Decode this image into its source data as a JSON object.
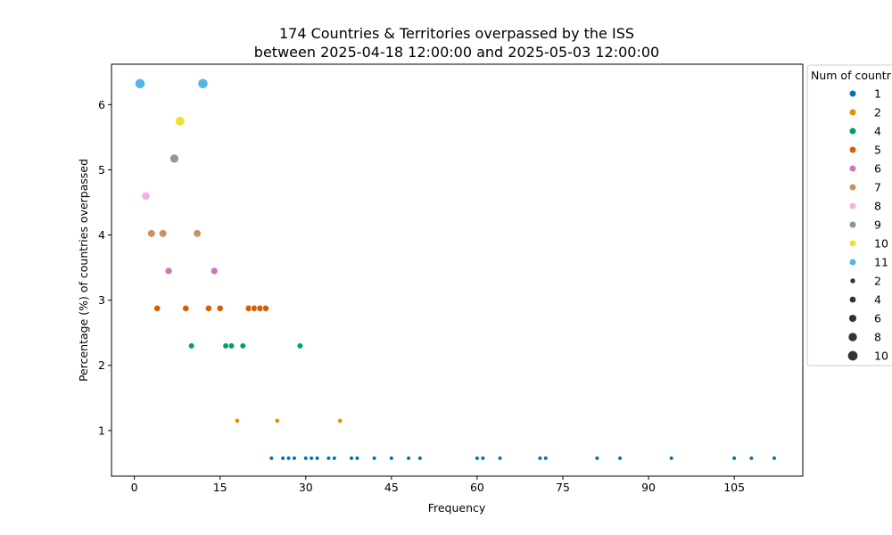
{
  "chart_data": {
    "type": "scatter",
    "title": "174 Countries & Territories overpassed by the ISS",
    "subtitle": "between 2025-04-18 12:00:00 and 2025-05-03 12:00:00",
    "xlabel": "Frequency",
    "ylabel": "Percentage (%) of countries overpassed",
    "xlim": [
      -4,
      117
    ],
    "ylim": [
      0.3,
      6.62
    ],
    "xticks": [
      0,
      15,
      30,
      45,
      60,
      75,
      90,
      105
    ],
    "yticks": [
      1,
      2,
      3,
      4,
      5,
      6
    ],
    "legend": {
      "title": "Num of countries",
      "placement": "outside-right",
      "hue_entries": [
        {
          "label": "1",
          "color": "#0173b2"
        },
        {
          "label": "2",
          "color": "#de8f05"
        },
        {
          "label": "4",
          "color": "#029e73"
        },
        {
          "label": "5",
          "color": "#d55e00"
        },
        {
          "label": "6",
          "color": "#cc78bc"
        },
        {
          "label": "7",
          "color": "#ca9161"
        },
        {
          "label": "8",
          "color": "#fbafe4"
        },
        {
          "label": "9",
          "color": "#949494"
        },
        {
          "label": "10",
          "color": "#ece133"
        },
        {
          "label": "11",
          "color": "#56b4e9"
        }
      ],
      "size_entries": [
        {
          "label": "2",
          "value": 2
        },
        {
          "label": "4",
          "value": 4
        },
        {
          "label": "6",
          "value": 6
        },
        {
          "label": "8",
          "value": 8
        },
        {
          "label": "10",
          "value": 10
        }
      ]
    },
    "series": [
      {
        "name": "1",
        "color": "#0173b2",
        "count": 1,
        "x": [
          24,
          26,
          27,
          28,
          30,
          31,
          32,
          34,
          35,
          38,
          39,
          42,
          45,
          48,
          50,
          60,
          61,
          64,
          71,
          72,
          81,
          85,
          94,
          105,
          108,
          112
        ],
        "y": [
          0.575,
          0.575,
          0.575,
          0.575,
          0.575,
          0.575,
          0.575,
          0.575,
          0.575,
          0.575,
          0.575,
          0.575,
          0.575,
          0.575,
          0.575,
          0.575,
          0.575,
          0.575,
          0.575,
          0.575,
          0.575,
          0.575,
          0.575,
          0.575,
          0.575,
          0.575
        ]
      },
      {
        "name": "2",
        "color": "#de8f05",
        "count": 2,
        "x": [
          18,
          25,
          36
        ],
        "y": [
          1.149,
          1.149,
          1.149
        ]
      },
      {
        "name": "4",
        "color": "#029e73",
        "count": 4,
        "x": [
          10,
          16,
          17,
          19,
          29
        ],
        "y": [
          2.299,
          2.299,
          2.299,
          2.299,
          2.299
        ]
      },
      {
        "name": "5",
        "color": "#d55e00",
        "count": 5,
        "x": [
          4,
          9,
          13,
          15,
          20,
          21,
          22,
          23
        ],
        "y": [
          2.874,
          2.874,
          2.874,
          2.874,
          2.874,
          2.874,
          2.874,
          2.874
        ]
      },
      {
        "name": "6",
        "color": "#cc78bc",
        "count": 6,
        "x": [
          6,
          14
        ],
        "y": [
          3.448,
          3.448
        ]
      },
      {
        "name": "7",
        "color": "#ca9161",
        "count": 7,
        "x": [
          3,
          5,
          11
        ],
        "y": [
          4.023,
          4.023,
          4.023
        ]
      },
      {
        "name": "8",
        "color": "#fbafe4",
        "count": 8,
        "x": [
          2
        ],
        "y": [
          4.598
        ]
      },
      {
        "name": "9",
        "color": "#949494",
        "count": 9,
        "x": [
          7
        ],
        "y": [
          5.172
        ]
      },
      {
        "name": "10",
        "color": "#ece133",
        "count": 10,
        "x": [
          8
        ],
        "y": [
          5.747
        ]
      },
      {
        "name": "11",
        "color": "#56b4e9",
        "count": 11,
        "x": [
          1,
          12
        ],
        "y": [
          6.322,
          6.322
        ]
      }
    ]
  }
}
